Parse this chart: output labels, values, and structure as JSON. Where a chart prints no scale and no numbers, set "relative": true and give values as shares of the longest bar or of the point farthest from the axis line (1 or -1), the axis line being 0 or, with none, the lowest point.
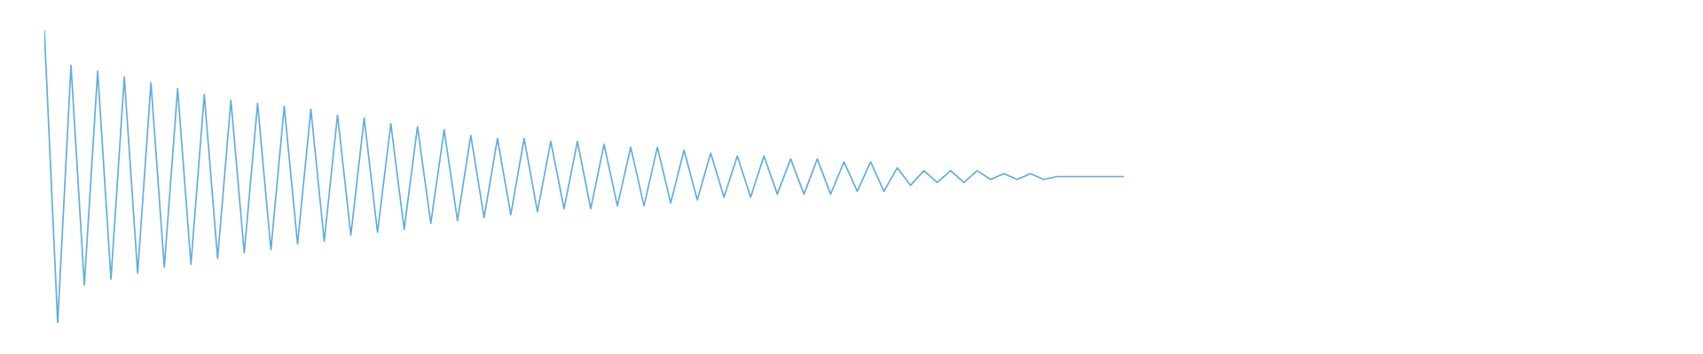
{
  "chart_data": {
    "type": "line",
    "relative": true,
    "categories": [
      null,
      null,
      null,
      null,
      null,
      null,
      null,
      null,
      null,
      null,
      null,
      null,
      null,
      null,
      null,
      null,
      null,
      null,
      null,
      null,
      null,
      null,
      null,
      null,
      null,
      null,
      null,
      null,
      null,
      null,
      null,
      null,
      null,
      null,
      null,
      null,
      null,
      null,
      null,
      null,
      null,
      null,
      null,
      null,
      null,
      null,
      null,
      null,
      null,
      null,
      null,
      null,
      null,
      null,
      null,
      null,
      null,
      null,
      null,
      null,
      null,
      null,
      null,
      null,
      null,
      null,
      null,
      null,
      null,
      null,
      null,
      null,
      null,
      null,
      null,
      null,
      null,
      null,
      null,
      null,
      null,
      null
    ],
    "series": [
      {
        "color": "#5dade2",
        "values": [
          1,
          0,
          0.88,
          0.13,
          0.86,
          0.15,
          0.84,
          0.17,
          0.82,
          0.19,
          0.8,
          0.2,
          0.78,
          0.22,
          0.76,
          0.24,
          0.75,
          0.25,
          0.74,
          0.27,
          0.73,
          0.28,
          0.71,
          0.3,
          0.7,
          0.31,
          0.68,
          0.32,
          0.67,
          0.34,
          0.66,
          0.35,
          0.64,
          0.36,
          0.63,
          0.37,
          0.63,
          0.38,
          0.62,
          0.39,
          0.62,
          0.39,
          0.61,
          0.4,
          0.6,
          0.4,
          0.6,
          0.41,
          0.59,
          0.42,
          0.58,
          0.43,
          0.57,
          0.43,
          0.57,
          0.44,
          0.56,
          0.44,
          0.56,
          0.44,
          0.55,
          0.45,
          0.55,
          0.45,
          0.53,
          0.47,
          0.52,
          0.48,
          0.52,
          0.48,
          0.52,
          0.49,
          0.51,
          0.49,
          0.51,
          0.49,
          0.5,
          0.5,
          0.5,
          0.5,
          0.5,
          0.5
        ]
      }
    ]
  }
}
